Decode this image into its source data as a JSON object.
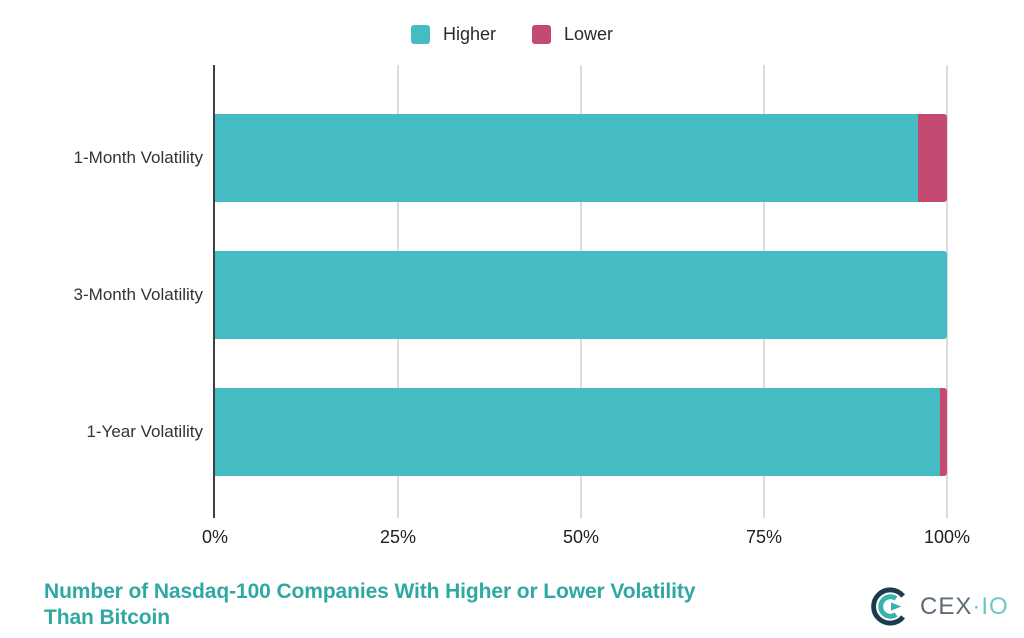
{
  "chart_data": {
    "type": "bar",
    "orientation": "horizontal",
    "stacked": true,
    "title": "Number of Nasdaq-100 Companies With Higher or Lower Volatility Than Bitcoin",
    "categories": [
      "1-Month Volatility",
      "3-Month Volatility",
      "1-Year Volatility"
    ],
    "series": [
      {
        "name": "Higher",
        "color": "#45bcc4",
        "values": [
          96,
          100,
          99
        ]
      },
      {
        "name": "Lower",
        "color": "#c54a71",
        "values": [
          4,
          0,
          1
        ]
      }
    ],
    "unit": "%",
    "xlim": [
      0,
      100
    ],
    "x_ticks": [
      "0%",
      "25%",
      "50%",
      "75%",
      "100%"
    ],
    "grid": "vertical-gridlines",
    "legend_position": "top-center"
  },
  "title": {
    "lines": [
      "Number of Nasdaq-100 Companies With Higher or Lower Volatility",
      "Than Bitcoin"
    ],
    "color": "#2fa8a2"
  },
  "branding": {
    "logo_text_primary": "CEX",
    "logo_text_separator": "·",
    "logo_text_secondary": "IO",
    "logo_primary_color": "#5d6b76",
    "logo_secondary_color": "#6fc7c4",
    "logo_mark_dark": "#1d3b4e",
    "logo_mark_teal": "#35b3ae"
  },
  "colors": {
    "higher": "#45bcc4",
    "lower": "#c54a71",
    "gridline": "#dcdcdc",
    "axis_line": "#3f3f3f",
    "label_text": "#333333"
  }
}
